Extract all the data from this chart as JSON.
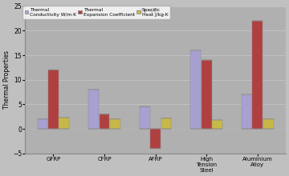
{
  "categories": [
    "GFRP",
    "CFRP",
    "AFRP",
    "High\nTension\nSteel",
    "Aluminium\nAlloy"
  ],
  "thermal_conductivity": [
    2.0,
    8.0,
    4.5,
    16.0,
    7.0
  ],
  "thermal_expansion": [
    12.0,
    3.0,
    -4.0,
    14.0,
    22.0
  ],
  "specific_heat": [
    2.3,
    2.0,
    2.2,
    1.8,
    2.0
  ],
  "bar_colors": {
    "conductivity_body": "#a8a0d0",
    "conductivity_top": "#c8c0e8",
    "expansion_body": "#b04040",
    "expansion_top": "#c86060",
    "specific_heat_body": "#c8b848",
    "specific_heat_top": "#ddd070"
  },
  "ylabel": "Thermal Properties",
  "ylim": [
    -5,
    25
  ],
  "yticks": [
    -5,
    0,
    5,
    10,
    15,
    20,
    25
  ],
  "background_color": "#c0c0c0",
  "plot_background": "#b0b0b0",
  "grid_color": "#d0d0d0"
}
